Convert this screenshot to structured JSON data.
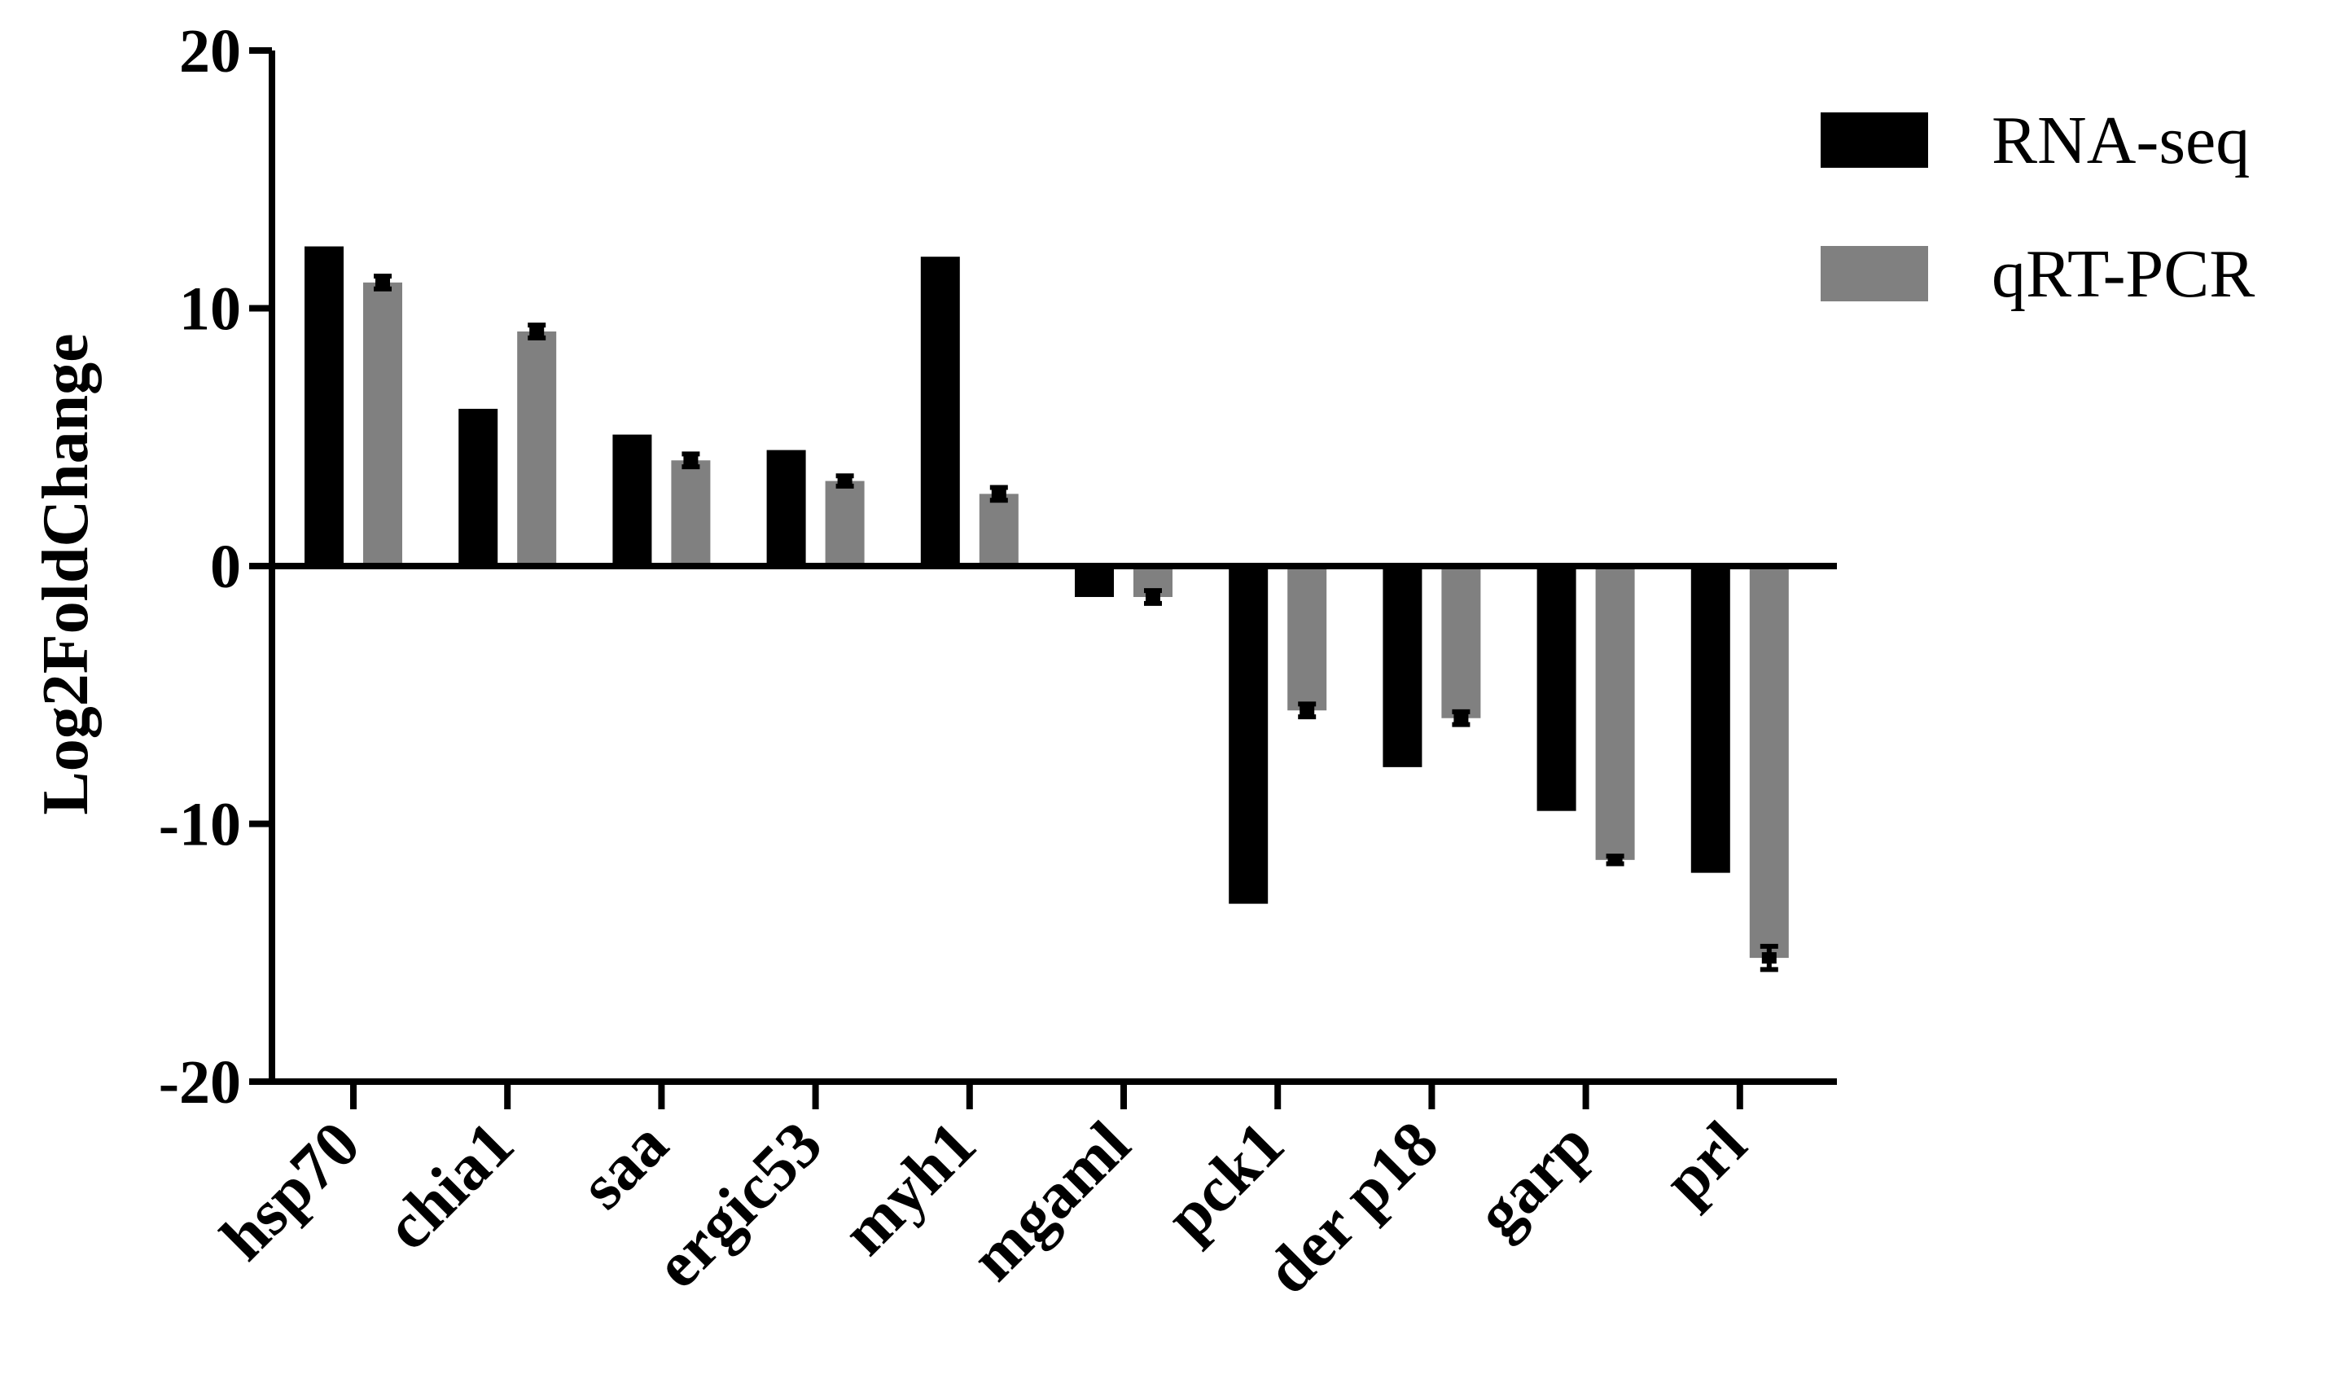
{
  "chart_data": {
    "type": "bar",
    "ylabel": "Log2FoldChange",
    "ylim": [
      -20,
      20
    ],
    "yticks": [
      20,
      10,
      0,
      -10,
      -20
    ],
    "categories": [
      "hsp70",
      "chia1",
      "saa",
      "ergic53",
      "myh1",
      "mgaml",
      "pck1",
      "der p18",
      "garp",
      "prl"
    ],
    "series": [
      {
        "name": "RNA-seq",
        "color": "#000000",
        "values": [
          12.4,
          6.1,
          5.1,
          4.5,
          12.0,
          -1.2,
          -13.1,
          -7.8,
          -9.5,
          -11.9
        ]
      },
      {
        "name": "qRT-PCR",
        "color": "#808080",
        "values": [
          11.0,
          9.1,
          4.1,
          3.3,
          2.8,
          -1.2,
          -5.6,
          -5.9,
          -11.4,
          -15.2
        ],
        "error": [
          0.25,
          0.25,
          0.25,
          0.2,
          0.25,
          0.25,
          0.25,
          0.25,
          0.15,
          0.45
        ]
      }
    ],
    "legend": "top-right"
  }
}
